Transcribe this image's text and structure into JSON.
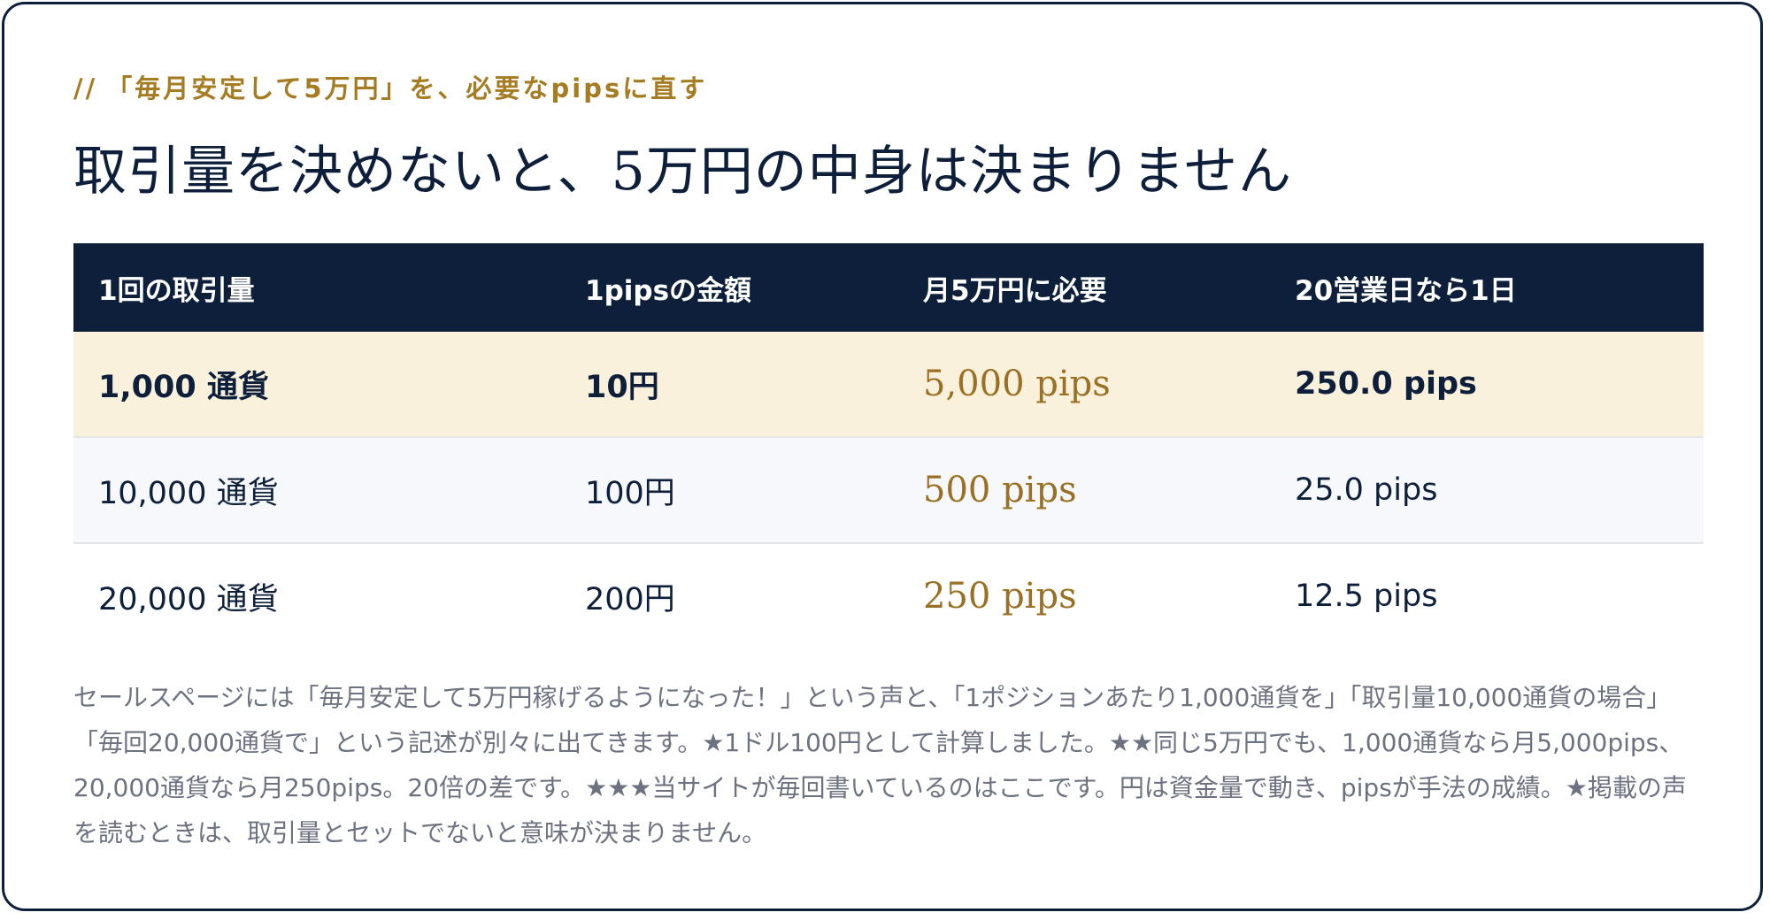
{
  "section": {
    "eyebrow_prefix": "//",
    "eyebrow": "「毎月安定して5万円」を、必要なpipsに直す",
    "title": "取引量を決めないと、5万円の中身は決まりません"
  },
  "table": {
    "headers": [
      "1回の取引量",
      "1pipsの金額",
      "月5万円に必要",
      "20営業日なら1日"
    ],
    "rows": [
      [
        "1,000 通貨",
        "10円",
        "5,000 pips",
        "250.0 pips"
      ],
      [
        "10,000 通貨",
        "100円",
        "500 pips",
        "25.0 pips"
      ],
      [
        "20,000 通貨",
        "200円",
        "250 pips",
        "12.5 pips"
      ]
    ],
    "highlight_row": 0
  },
  "note": "セールスページには「毎月安定して5万円稼げるようになった！」という声と、「1ポジションあたり1,000通貨を」「取引量10,000通貨の場合」「毎回20,000通貨で」という記述が別々に出てきます。★1ドル100円として計算しました。★★同じ5万円でも、1,000通貨なら月5,000pips、20,000通貨なら月250pips。20倍の差です。★★★当サイトが毎回書いているのはここです。円は資金量で動き、pipsが手法の成績。★掲載の声を読むときは、取引量とセットでないと意味が決まりません。",
  "colors": {
    "navy": "#0d1f3a",
    "gold": "#a67c22",
    "highlight_bg": "#faf1dd",
    "muted_text": "#6c7280"
  }
}
